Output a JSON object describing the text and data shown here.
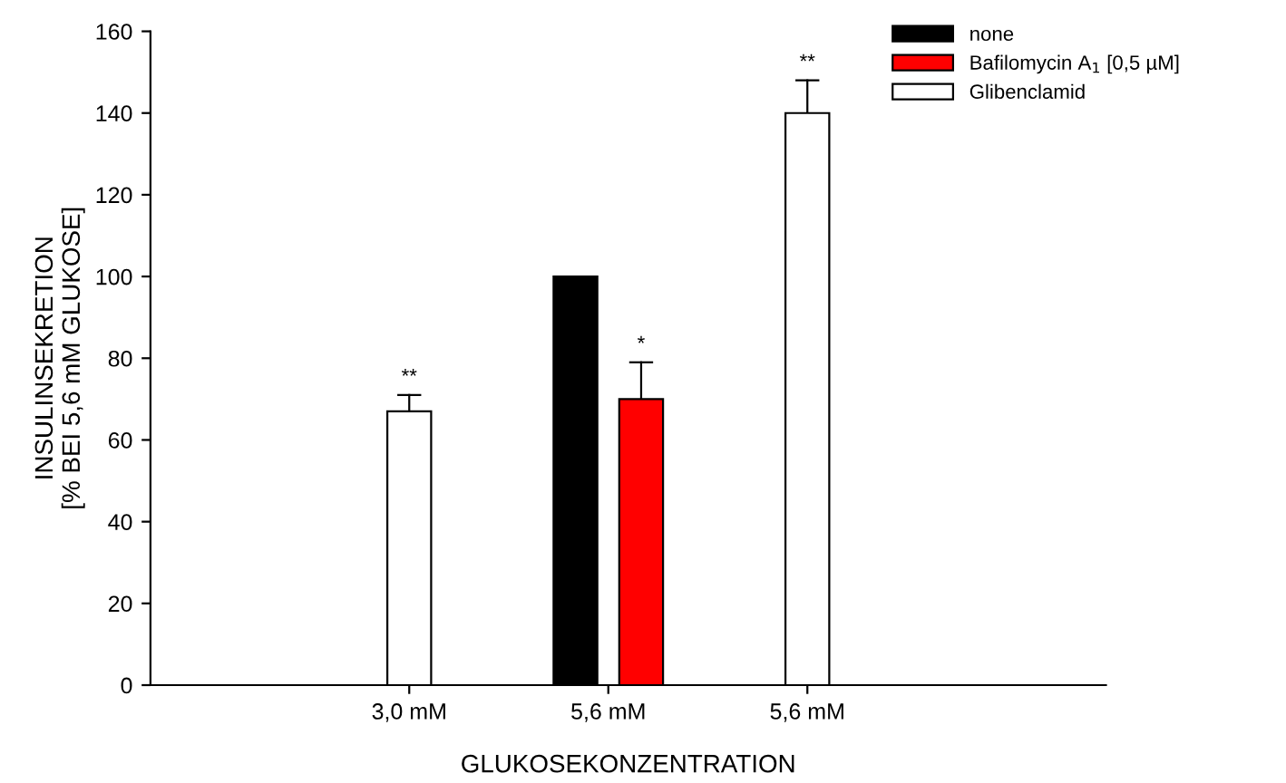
{
  "chart_data": {
    "type": "bar",
    "xlabel": "GLUKOSEKONZENTRATION",
    "ylabel": "INSULINSEKRETION\n[% BEI 5,6 mM GLUKOSE]",
    "categories": [
      "3,0 mM",
      "5,6 mM",
      "5,6 mM"
    ],
    "series": [
      {
        "color": "#ffffff",
        "values": [
          67,
          null,
          null
        ],
        "errors": [
          [
            67,
            71
          ],
          null,
          null
        ],
        "value_labels": [
          "**",
          null,
          null
        ]
      },
      {
        "name": "none",
        "color": "#000000",
        "values": [
          null,
          100,
          null
        ]
      },
      {
        "name": "Bafilomycin A$_{1}$ [0,5 µM]",
        "color": "#ff0000",
        "values": [
          null,
          70,
          null
        ],
        "errors": [
          null,
          [
            70,
            79
          ],
          null
        ],
        "value_labels": [
          null,
          "*",
          null
        ]
      },
      {
        "name": "Glibenclamid",
        "color": "#ffffff",
        "values": [
          null,
          null,
          140
        ],
        "errors": [
          null,
          null,
          [
            140,
            148
          ]
        ],
        "value_labels": [
          null,
          null,
          "**"
        ]
      }
    ],
    "ylim": [
      0,
      160
    ],
    "yticks": [
      0,
      20,
      40,
      60,
      80,
      100,
      120,
      140,
      160
    ],
    "grid": false,
    "legend": "top right"
  }
}
